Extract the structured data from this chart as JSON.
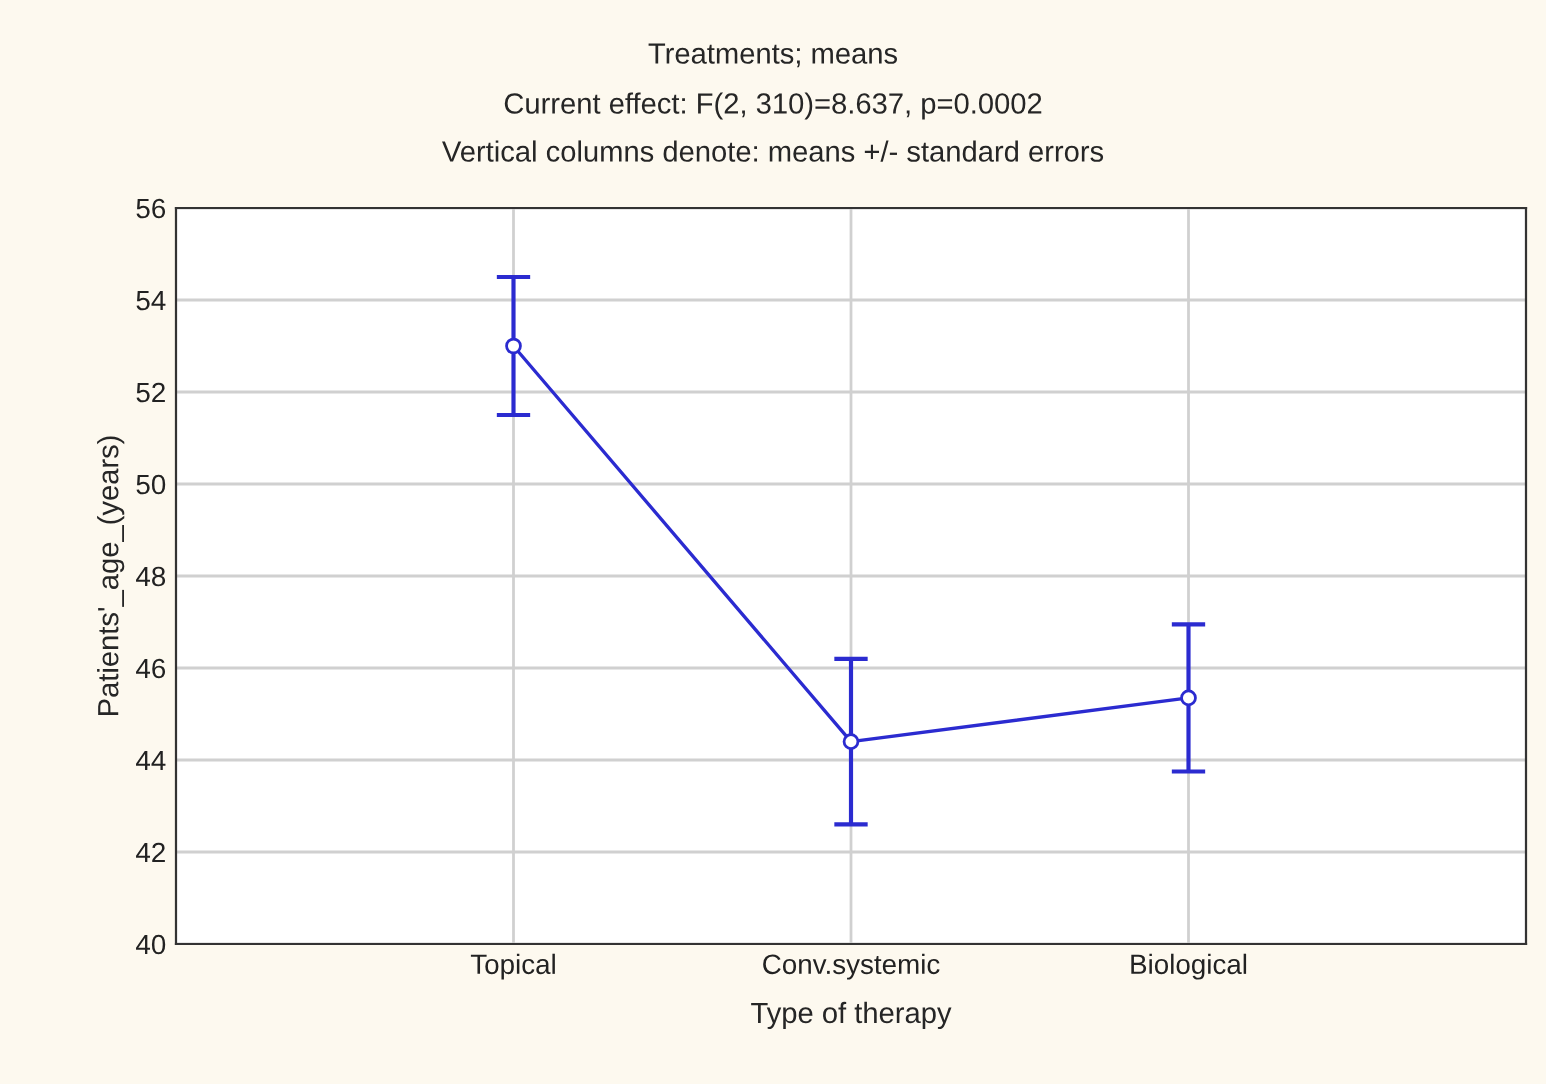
{
  "chart_data": {
    "type": "line",
    "title": "Treatments; means",
    "subtitle": "Current effect: F(2, 310)=8.637, p=0.0002\nVertical columns denote: means +/- standard errors",
    "xlabel": "Type of therapy",
    "ylabel": "Patients'_age_(years)",
    "categories": [
      "Topical",
      "Conv.systemic",
      "Biological"
    ],
    "series": [
      {
        "color": "#2b2bd0",
        "values": [
          53.0,
          44.4,
          45.35
        ],
        "errors": [
          1.5,
          1.8,
          1.6
        ]
      }
    ],
    "ylim": [
      40,
      56
    ],
    "yticks": [
      40,
      42,
      44,
      46,
      48,
      50,
      52,
      54,
      56
    ],
    "grid": true,
    "marker": "circle",
    "line_style": "solid",
    "legend": false
  }
}
